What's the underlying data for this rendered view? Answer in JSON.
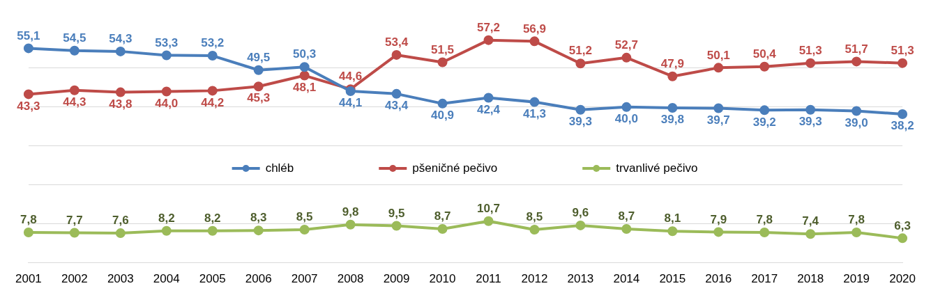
{
  "chart_data": {
    "type": "line",
    "categories": [
      "2001",
      "2002",
      "2003",
      "2004",
      "2005",
      "2006",
      "2007",
      "2008",
      "2009",
      "2010",
      "2011",
      "2012",
      "2013",
      "2014",
      "2015",
      "2016",
      "2017",
      "2018",
      "2019",
      "2020"
    ],
    "series": [
      {
        "name": "chléb",
        "color": "#4a7ebb",
        "values": [
          55.1,
          54.5,
          54.3,
          53.3,
          53.2,
          49.5,
          50.3,
          44.1,
          43.4,
          40.9,
          42.4,
          41.3,
          39.3,
          40.0,
          39.8,
          39.7,
          39.2,
          39.3,
          39.0,
          38.2
        ],
        "value_labels": [
          "55,1",
          "54,5",
          "54,3",
          "53,3",
          "53,2",
          "49,5",
          "50,3",
          "44,1",
          "43,4",
          "40,9",
          "42,4",
          "41,3",
          "39,3",
          "40,0",
          "39,8",
          "39,7",
          "39,2",
          "39,3",
          "39,0",
          "38,2"
        ]
      },
      {
        "name": "pšeničné pečivo",
        "color": "#be4b48",
        "values": [
          43.3,
          44.3,
          43.8,
          44.0,
          44.2,
          45.3,
          48.1,
          44.6,
          53.4,
          51.5,
          57.2,
          56.9,
          51.2,
          52.7,
          47.9,
          50.1,
          50.4,
          51.3,
          51.7,
          51.3
        ],
        "value_labels": [
          "43,3",
          "44,3",
          "43,8",
          "44,0",
          "44,2",
          "45,3",
          "48,1",
          "44,6",
          "53,4",
          "51,5",
          "57,2",
          "56,9",
          "51,2",
          "52,7",
          "47,9",
          "50,1",
          "50,4",
          "51,3",
          "51,7",
          "51,3"
        ]
      },
      {
        "name": "trvanlivé pečivo",
        "color": "#9bbb59",
        "values": [
          7.8,
          7.7,
          7.6,
          8.2,
          8.2,
          8.3,
          8.5,
          9.8,
          9.5,
          8.7,
          10.7,
          8.5,
          9.6,
          8.7,
          8.1,
          7.9,
          7.8,
          7.4,
          7.8,
          6.3
        ],
        "value_labels": [
          "7,8",
          "7,7",
          "7,6",
          "8,2",
          "8,2",
          "8,3",
          "8,5",
          "9,8",
          "9,5",
          "8,7",
          "10,7",
          "8,5",
          "9,6",
          "8,7",
          "8,1",
          "7,9",
          "7,8",
          "7,4",
          "7,8",
          "6,3"
        ]
      }
    ],
    "yticks": [
      {
        "value": 0,
        "label": null
      },
      {
        "value": 10,
        "label": null
      },
      {
        "value": 20,
        "label": null
      },
      {
        "value": 30,
        "label": null
      },
      {
        "value": 40,
        "label": null
      },
      {
        "value": 50,
        "label": null
      }
    ],
    "tick_labels": "x",
    "grid": "y",
    "legend": "center",
    "marker": "circle",
    "line_style": "solid"
  }
}
